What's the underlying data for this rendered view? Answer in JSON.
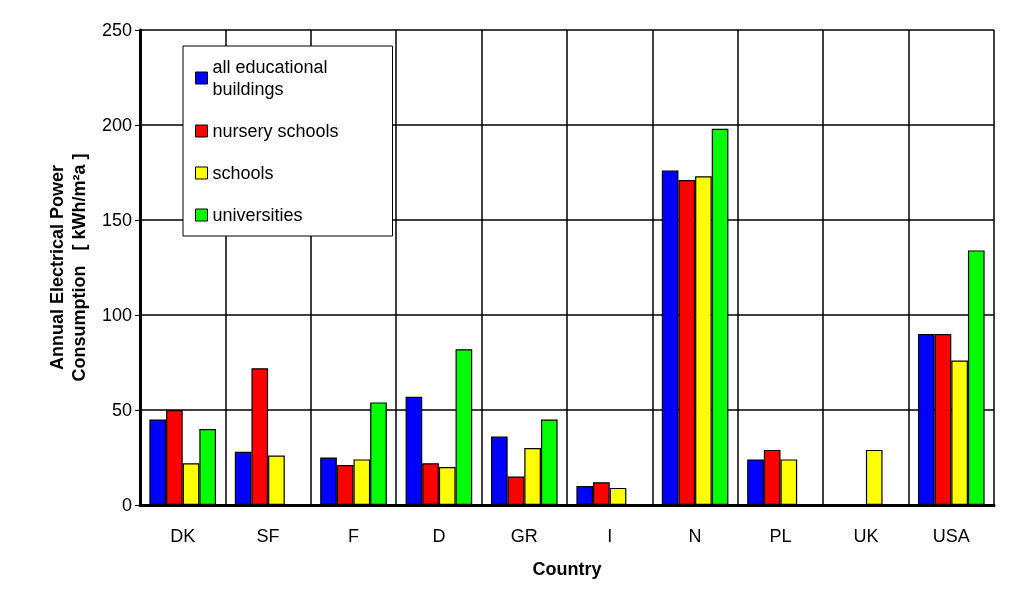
{
  "chart_data": {
    "type": "bar",
    "xlabel": "Country",
    "ylabel": "Annual Electrical Power\nConsumption   [ kWh/m²a ]",
    "categories": [
      "DK",
      "SF",
      "F",
      "D",
      "GR",
      "I",
      "N",
      "PL",
      "UK",
      "USA"
    ],
    "series": [
      {
        "name": "all educational buildings",
        "color": "#0000ff",
        "values": [
          45,
          28,
          25,
          57,
          36,
          10,
          176,
          24,
          null,
          90
        ]
      },
      {
        "name": "nursery schools",
        "color": "#ff0000",
        "values": [
          50,
          72,
          21,
          22,
          15,
          12,
          171,
          29,
          null,
          90
        ]
      },
      {
        "name": "schools",
        "color": "#ffff00",
        "values": [
          22,
          26,
          24,
          20,
          30,
          9,
          173,
          24,
          29,
          76
        ]
      },
      {
        "name": "universities",
        "color": "#00ff00",
        "values": [
          40,
          null,
          54,
          82,
          45,
          null,
          198,
          null,
          null,
          134
        ]
      }
    ],
    "ylim": [
      0,
      250
    ],
    "yticks": [
      0,
      50,
      100,
      150,
      200,
      250
    ],
    "grid": true,
    "legend": "top left"
  }
}
